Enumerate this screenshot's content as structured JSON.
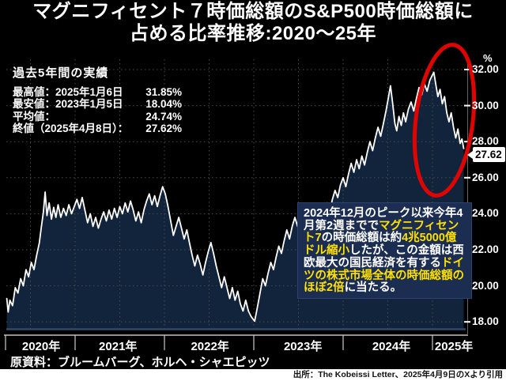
{
  "title": {
    "line1": "マグニフィセント７時価総額のS&P500時価総額に",
    "line2": "占める比率推移:2020～25年"
  },
  "stats": {
    "header": "過去5年間の実績",
    "rows": [
      {
        "label": "最高値：2025年1月6日",
        "value": "31.85%"
      },
      {
        "label": "最安値：2023年1月5日",
        "value": "18.04%"
      },
      {
        "label": "平均値：",
        "value": "24.74%"
      },
      {
        "label": "終値（2025年4月8日）：",
        "value": "27.62%"
      }
    ]
  },
  "annotation": {
    "segments": [
      {
        "text": "2024年12月のピーク以来今年4月第2週までで",
        "color": "white"
      },
      {
        "text": "マグニフィセント7",
        "color": "yellow"
      },
      {
        "text": "の時価総額は約",
        "color": "white"
      },
      {
        "text": "4兆5000億ドル縮小",
        "color": "yellow"
      },
      {
        "text": "したが、この金額は西欧最大の国民経済を有する",
        "color": "white"
      },
      {
        "text": "ドイツの株式市場全体の時価総額のほぼ2倍",
        "color": "yellow"
      },
      {
        "text": "に当たる。",
        "color": "white"
      }
    ]
  },
  "axis": {
    "unit": "%",
    "current_value_label": "27.62"
  },
  "source_line": "原資料：ブルームバーグ、ホルヘ・シャエピッツ",
  "footer": "出所：The Kobeissi Letter、2025年4月9日のXより引用",
  "colors": {
    "background": "#000000",
    "line": "#ffffff",
    "area_fill": "#12243b",
    "area_bottom_edge": "#2e4a66",
    "grid": "#4a4a4a",
    "axis_line": "#e8e8e8",
    "right_spine": "#666666",
    "highlight_red": "#e00400",
    "annotation_bg": "#1c2d52",
    "annotation_yellow": "#ffe100",
    "badge_bg": "#ffffff",
    "footer_bg": "#ffffff"
  },
  "chart_data": {
    "type": "area",
    "title": "マグニフィセント７時価総額のS&P500時価総額に占める比率推移:2020～25年",
    "xlabel": "",
    "ylabel": "%",
    "ylim": [
      16.6,
      32.6
    ],
    "xlim_years": [
      2020.23,
      2025.38
    ],
    "grid": "dotted",
    "y_ticks": [
      32,
      30,
      28,
      26,
      24,
      22,
      20,
      18
    ],
    "x_year_ticks": [
      2021,
      2022,
      2023,
      2024,
      2025
    ],
    "x_gridlines_half_year": [
      2020.5,
      2021,
      2021.5,
      2022,
      2022.5,
      2023,
      2023.5,
      2024,
      2024.5,
      2025
    ],
    "x_labels": [
      {
        "text": "2020年",
        "center": 2020.62
      },
      {
        "text": "2021年",
        "center": 2021.48
      },
      {
        "text": "2022年",
        "center": 2022.51
      },
      {
        "text": "2023年",
        "center": 2023.55
      },
      {
        "text": "2024年",
        "center": 2024.54
      },
      {
        "text": "2025年",
        "center": 2025.24
      }
    ],
    "key_points": {
      "max": {
        "date": "2025-01-06",
        "value": 31.85
      },
      "min": {
        "date": "2023-01-05",
        "value": 18.04
      },
      "mean": 24.74,
      "last": {
        "date": "2025-04-08",
        "value": 27.62
      }
    },
    "series": [
      [
        2020.235,
        19.3
      ],
      [
        2020.25,
        18.55
      ],
      [
        2020.27,
        19.2
      ],
      [
        2020.3,
        18.9
      ],
      [
        2020.33,
        19.9
      ],
      [
        2020.36,
        19.6
      ],
      [
        2020.39,
        20.4
      ],
      [
        2020.42,
        20.0
      ],
      [
        2020.45,
        20.9
      ],
      [
        2020.48,
        20.5
      ],
      [
        2020.51,
        21.3
      ],
      [
        2020.54,
        20.9
      ],
      [
        2020.57,
        21.7
      ],
      [
        2020.6,
        22.4
      ],
      [
        2020.62,
        23.2
      ],
      [
        2020.645,
        24.1
      ],
      [
        2020.665,
        25.2
      ],
      [
        2020.685,
        23.9
      ],
      [
        2020.71,
        24.6
      ],
      [
        2020.735,
        23.7
      ],
      [
        2020.76,
        24.35
      ],
      [
        2020.785,
        23.8
      ],
      [
        2020.81,
        24.5
      ],
      [
        2020.84,
        23.8
      ],
      [
        2020.87,
        24.3
      ],
      [
        2020.9,
        23.9
      ],
      [
        2020.93,
        24.5
      ],
      [
        2020.96,
        24.0
      ],
      [
        2020.99,
        24.4
      ],
      [
        2021.02,
        24.8
      ],
      [
        2021.05,
        24.3
      ],
      [
        2021.08,
        24.9
      ],
      [
        2021.11,
        24.2
      ],
      [
        2021.14,
        23.5
      ],
      [
        2021.17,
        24.0
      ],
      [
        2021.2,
        23.3
      ],
      [
        2021.23,
        23.8
      ],
      [
        2021.26,
        23.2
      ],
      [
        2021.29,
        23.7
      ],
      [
        2021.32,
        24.1
      ],
      [
        2021.35,
        23.6
      ],
      [
        2021.38,
        24.2
      ],
      [
        2021.41,
        23.7
      ],
      [
        2021.44,
        24.3
      ],
      [
        2021.47,
        23.8
      ],
      [
        2021.5,
        24.4
      ],
      [
        2021.53,
        24.0
      ],
      [
        2021.56,
        24.6
      ],
      [
        2021.59,
        24.1
      ],
      [
        2021.62,
        24.7
      ],
      [
        2021.65,
        24.2
      ],
      [
        2021.68,
        23.6
      ],
      [
        2021.71,
        24.1
      ],
      [
        2021.74,
        23.5
      ],
      [
        2021.77,
        24.2
      ],
      [
        2021.8,
        24.7
      ],
      [
        2021.83,
        25.1
      ],
      [
        2021.86,
        24.5
      ],
      [
        2021.89,
        25.0
      ],
      [
        2021.92,
        24.4
      ],
      [
        2021.95,
        25.0
      ],
      [
        2021.98,
        25.5
      ],
      [
        2022.01,
        25.1
      ],
      [
        2022.04,
        24.4
      ],
      [
        2022.07,
        23.6
      ],
      [
        2022.1,
        22.8
      ],
      [
        2022.13,
        23.3
      ],
      [
        2022.16,
        23.8
      ],
      [
        2022.19,
        23.2
      ],
      [
        2022.22,
        22.6
      ],
      [
        2022.25,
        23.1
      ],
      [
        2022.28,
        22.4
      ],
      [
        2022.31,
        21.7
      ],
      [
        2022.34,
        21.1
      ],
      [
        2022.37,
        21.7
      ],
      [
        2022.4,
        21.2
      ],
      [
        2022.43,
        20.6
      ],
      [
        2022.46,
        21.3
      ],
      [
        2022.49,
        21.9
      ],
      [
        2022.52,
        22.4
      ],
      [
        2022.55,
        21.8
      ],
      [
        2022.58,
        21.1
      ],
      [
        2022.61,
        20.5
      ],
      [
        2022.64,
        19.9
      ],
      [
        2022.67,
        20.5
      ],
      [
        2022.7,
        19.9
      ],
      [
        2022.73,
        19.3
      ],
      [
        2022.76,
        19.9
      ],
      [
        2022.79,
        19.2
      ],
      [
        2022.82,
        19.7
      ],
      [
        2022.85,
        19.0
      ],
      [
        2022.88,
        18.6
      ],
      [
        2022.91,
        19.2
      ],
      [
        2022.94,
        18.6
      ],
      [
        2022.97,
        18.3
      ],
      [
        2023.01,
        18.04
      ],
      [
        2023.04,
        18.8
      ],
      [
        2023.07,
        19.6
      ],
      [
        2023.1,
        20.4
      ],
      [
        2023.13,
        20.0
      ],
      [
        2023.16,
        20.7
      ],
      [
        2023.19,
        21.3
      ],
      [
        2023.22,
        20.9
      ],
      [
        2023.25,
        21.6
      ],
      [
        2023.28,
        22.2
      ],
      [
        2023.31,
        21.8
      ],
      [
        2023.34,
        22.5
      ],
      [
        2023.37,
        23.1
      ],
      [
        2023.4,
        22.6
      ],
      [
        2023.43,
        23.3
      ],
      [
        2023.46,
        23.8
      ],
      [
        2023.49,
        23.3
      ],
      [
        2023.52,
        24.0
      ],
      [
        2023.55,
        23.5
      ],
      [
        2023.58,
        24.1
      ],
      [
        2023.61,
        23.6
      ],
      [
        2023.64,
        24.3
      ],
      [
        2023.67,
        23.7
      ],
      [
        2023.7,
        23.2
      ],
      [
        2023.73,
        23.8
      ],
      [
        2023.76,
        24.4
      ],
      [
        2023.79,
        23.9
      ],
      [
        2023.82,
        24.6
      ],
      [
        2023.85,
        24.1
      ],
      [
        2023.88,
        24.8
      ],
      [
        2023.91,
        25.3
      ],
      [
        2023.94,
        24.9
      ],
      [
        2023.97,
        25.6
      ],
      [
        2024.0,
        26.0
      ],
      [
        2024.03,
        25.5
      ],
      [
        2024.06,
        26.2
      ],
      [
        2024.09,
        26.8
      ],
      [
        2024.12,
        26.3
      ],
      [
        2024.15,
        27.0
      ],
      [
        2024.18,
        26.5
      ],
      [
        2024.21,
        27.2
      ],
      [
        2024.24,
        26.7
      ],
      [
        2024.27,
        27.4
      ],
      [
        2024.3,
        28.0
      ],
      [
        2024.33,
        27.5
      ],
      [
        2024.36,
        28.2
      ],
      [
        2024.39,
        28.8
      ],
      [
        2024.42,
        28.3
      ],
      [
        2024.45,
        29.0
      ],
      [
        2024.48,
        29.7
      ],
      [
        2024.505,
        30.4
      ],
      [
        2024.53,
        31.1
      ],
      [
        2024.555,
        30.1
      ],
      [
        2024.58,
        29.0
      ],
      [
        2024.6,
        28.6
      ],
      [
        2024.625,
        29.4
      ],
      [
        2024.65,
        28.9
      ],
      [
        2024.675,
        29.6
      ],
      [
        2024.7,
        29.1
      ],
      [
        2024.73,
        29.8
      ],
      [
        2024.76,
        30.2
      ],
      [
        2024.79,
        29.7
      ],
      [
        2024.82,
        30.4
      ],
      [
        2024.85,
        31.0
      ],
      [
        2024.88,
        30.6
      ],
      [
        2024.91,
        31.2
      ],
      [
        2024.94,
        30.8
      ],
      [
        2024.97,
        31.4
      ],
      [
        2025.015,
        31.85
      ],
      [
        2025.04,
        31.1
      ],
      [
        2025.06,
        30.5
      ],
      [
        2025.085,
        30.9
      ],
      [
        2025.11,
        30.1
      ],
      [
        2025.135,
        30.5
      ],
      [
        2025.16,
        29.6
      ],
      [
        2025.185,
        29.1
      ],
      [
        2025.21,
        29.6
      ],
      [
        2025.235,
        28.8
      ],
      [
        2025.26,
        28.2
      ],
      [
        2025.285,
        28.7
      ],
      [
        2025.31,
        27.9
      ],
      [
        2025.33,
        28.15
      ],
      [
        2025.35,
        27.62
      ]
    ]
  }
}
